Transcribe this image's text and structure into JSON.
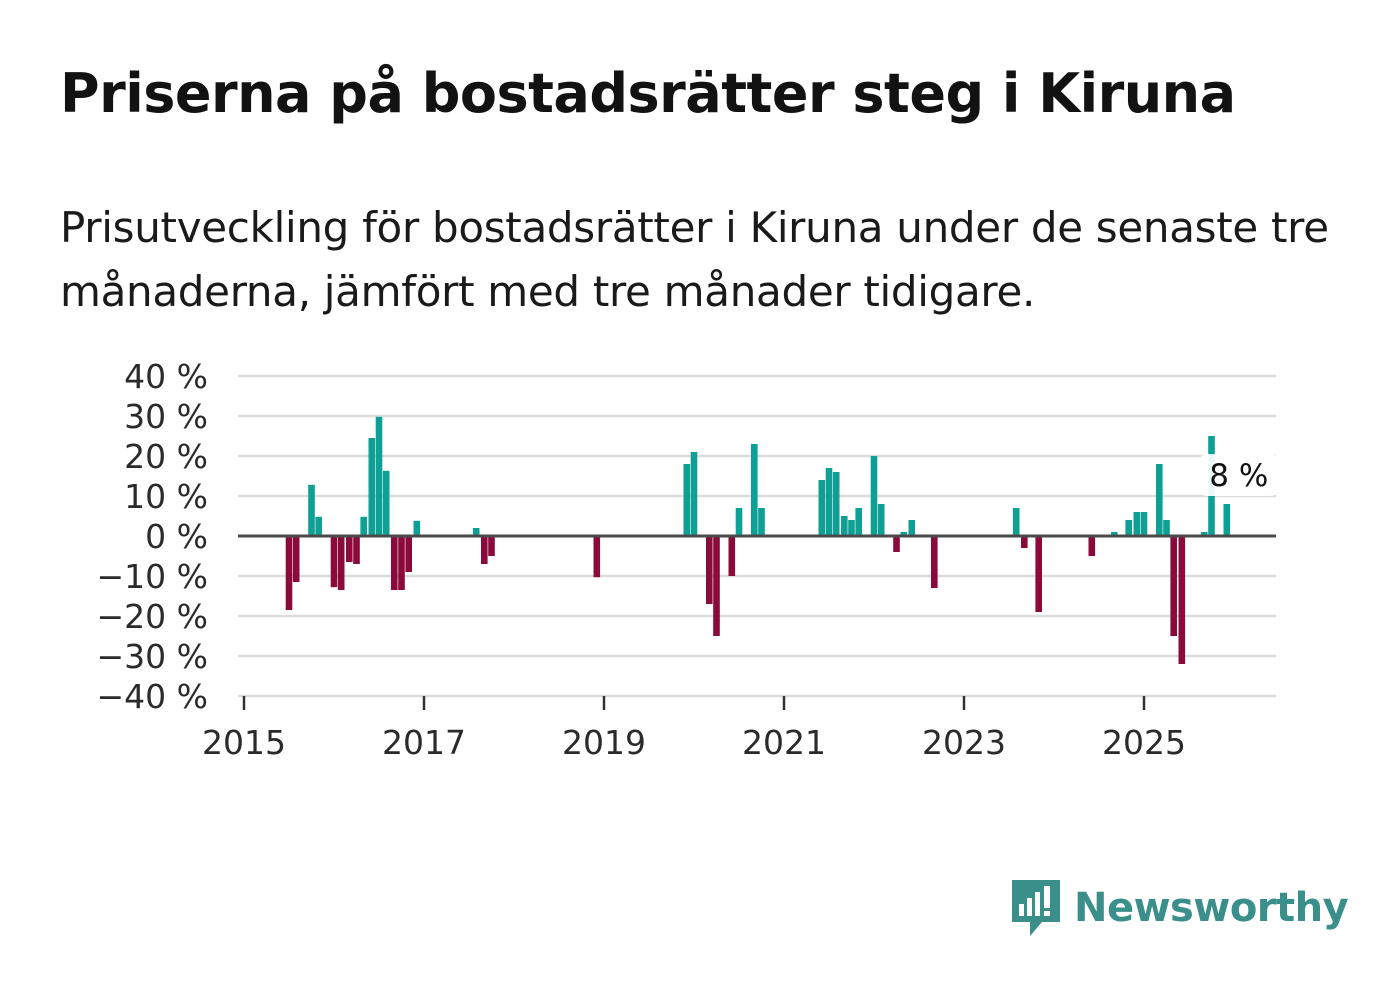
{
  "title": "Priserna på bostadsrätter steg i Kiruna",
  "subtitle": "Prisutveckling för bostadsrätter i Kiruna under de senaste tre månaderna, jämfört med tre månader tidigare.",
  "brand": {
    "name": "Newsworthy",
    "color": "#3a8f8a",
    "icon": "newsworthy-logo-icon"
  },
  "colors": {
    "positive": "#0fa095",
    "negative": "#8b0a3b",
    "grid": "#dcdcdc",
    "zero": "#4a4a4a"
  },
  "chart_data": {
    "type": "bar",
    "title": "Priserna på bostadsrätter steg i Kiruna",
    "xlabel": "",
    "ylabel": "",
    "ylim": [
      -40,
      40
    ],
    "xlim": [
      2015.0,
      2026.75
    ],
    "y_ticks": [
      40,
      30,
      20,
      10,
      0,
      -10,
      -20,
      -30,
      -40
    ],
    "y_tick_labels": [
      "40 %",
      "30 %",
      "20 %",
      "10 %",
      "0 %",
      "−10 %",
      "−20 %",
      "−30 %",
      "−40 %"
    ],
    "x_ticks": [
      2015,
      2017,
      2019,
      2021,
      2023,
      2025
    ],
    "x_tick_labels": [
      "2015",
      "2017",
      "2019",
      "2021",
      "2023",
      "2025"
    ],
    "grid": true,
    "annotation": {
      "label": "8 %",
      "x": 2025.92,
      "value": 8
    },
    "series": [
      {
        "name": "Prisutveckling",
        "points": [
          {
            "x": 2015.5,
            "value": -18.5
          },
          {
            "x": 2015.58,
            "value": -11.5
          },
          {
            "x": 2015.75,
            "value": 12.8
          },
          {
            "x": 2015.83,
            "value": 4.8
          },
          {
            "x": 2016.0,
            "value": -12.8
          },
          {
            "x": 2016.08,
            "value": -13.5
          },
          {
            "x": 2016.17,
            "value": -6.5
          },
          {
            "x": 2016.25,
            "value": -7.0
          },
          {
            "x": 2016.33,
            "value": 4.8
          },
          {
            "x": 2016.42,
            "value": 24.5
          },
          {
            "x": 2016.5,
            "value": 29.8
          },
          {
            "x": 2016.58,
            "value": 16.3
          },
          {
            "x": 2016.67,
            "value": -13.5
          },
          {
            "x": 2016.75,
            "value": -13.5
          },
          {
            "x": 2016.83,
            "value": -9.0
          },
          {
            "x": 2016.92,
            "value": 3.8
          },
          {
            "x": 2017.58,
            "value": 2.0
          },
          {
            "x": 2017.67,
            "value": -7.0
          },
          {
            "x": 2017.75,
            "value": -5.0
          },
          {
            "x": 2018.92,
            "value": -10.3
          },
          {
            "x": 2019.92,
            "value": 18.0
          },
          {
            "x": 2020.0,
            "value": 21.0
          },
          {
            "x": 2020.17,
            "value": -17.0
          },
          {
            "x": 2020.25,
            "value": -25.0
          },
          {
            "x": 2020.42,
            "value": -10.0
          },
          {
            "x": 2020.5,
            "value": 7.0
          },
          {
            "x": 2020.67,
            "value": 23.0
          },
          {
            "x": 2020.75,
            "value": 7.0
          },
          {
            "x": 2021.42,
            "value": 14.0
          },
          {
            "x": 2021.5,
            "value": 17.0
          },
          {
            "x": 2021.58,
            "value": 16.0
          },
          {
            "x": 2021.67,
            "value": 5.0
          },
          {
            "x": 2021.75,
            "value": 4.0
          },
          {
            "x": 2021.83,
            "value": 7.0
          },
          {
            "x": 2022.0,
            "value": 20.0
          },
          {
            "x": 2022.08,
            "value": 8.0
          },
          {
            "x": 2022.25,
            "value": -4.0
          },
          {
            "x": 2022.33,
            "value": 1.0
          },
          {
            "x": 2022.42,
            "value": 4.0
          },
          {
            "x": 2022.67,
            "value": -13.0
          },
          {
            "x": 2023.58,
            "value": 7.0
          },
          {
            "x": 2023.67,
            "value": -3.0
          },
          {
            "x": 2023.83,
            "value": -19.0
          },
          {
            "x": 2024.42,
            "value": -5.0
          },
          {
            "x": 2024.67,
            "value": 1.0
          },
          {
            "x": 2024.83,
            "value": 4.0
          },
          {
            "x": 2024.92,
            "value": 6.0
          },
          {
            "x": 2025.0,
            "value": 6.0
          },
          {
            "x": 2025.17,
            "value": 18.0
          },
          {
            "x": 2025.25,
            "value": 4.0
          },
          {
            "x": 2025.33,
            "value": -25.0
          },
          {
            "x": 2025.42,
            "value": -32.0
          },
          {
            "x": 2025.67,
            "value": 1.0
          },
          {
            "x": 2025.75,
            "value": 25.0
          },
          {
            "x": 2025.92,
            "value": 8.0
          }
        ]
      }
    ]
  }
}
